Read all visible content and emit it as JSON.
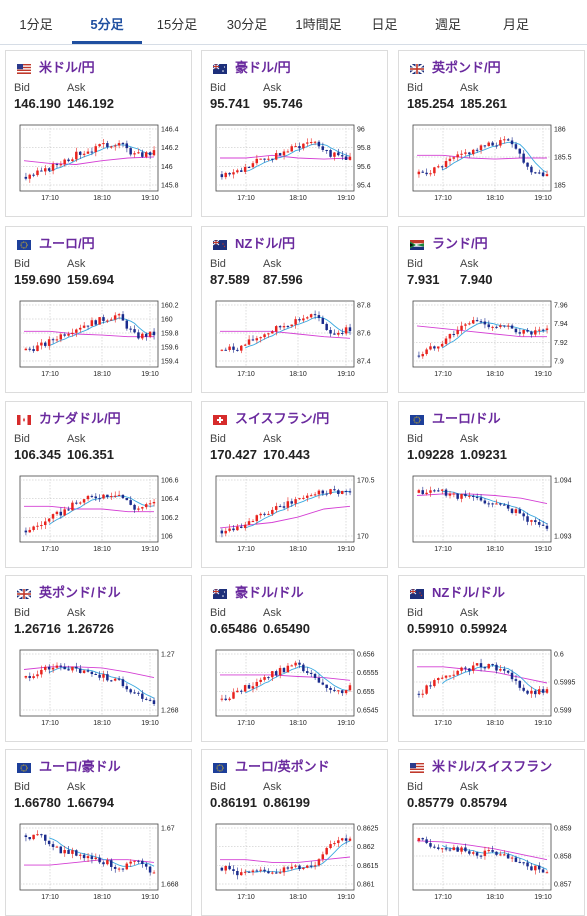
{
  "tabs": [
    {
      "label": "1分足",
      "active": false
    },
    {
      "label": "5分足",
      "active": true
    },
    {
      "label": "15分足",
      "active": false
    },
    {
      "label": "30分足",
      "active": false
    },
    {
      "label": "1時間足",
      "active": false
    },
    {
      "label": "日足",
      "active": false
    },
    {
      "label": "週足",
      "active": false
    },
    {
      "label": "月足",
      "active": false
    }
  ],
  "bid_label": "Bid",
  "ask_label": "Ask",
  "colors": {
    "accent": "#1f4fa0",
    "pair_text": "#6a2a9e",
    "up": "#e8231e",
    "down": "#1a2b8c",
    "ma_long": "#d43fd4",
    "ma_short": "#3aa9e0"
  },
  "cards": [
    {
      "pair": "米ドル/円",
      "flag": "us",
      "bid": "146.190",
      "ask": "146.192",
      "chart": {
        "x_ticks": [
          "17:10",
          "18:10",
          "19:10"
        ],
        "y_ticks": [
          "146.4",
          "146.2",
          "146",
          "145.8"
        ]
      }
    },
    {
      "pair": "豪ドル/円",
      "flag": "au",
      "bid": "95.741",
      "ask": "95.746",
      "chart": {
        "x_ticks": [
          "17:10",
          "18:10",
          "19:10"
        ],
        "y_ticks": [
          "96",
          "95.8",
          "95.6",
          "95.4"
        ]
      }
    },
    {
      "pair": "英ポンド/円",
      "flag": "uk",
      "bid": "185.254",
      "ask": "185.261",
      "chart": {
        "x_ticks": [
          "17:10",
          "18:10",
          "19:10"
        ],
        "y_ticks": [
          "186",
          "185.5",
          "185"
        ]
      }
    },
    {
      "pair": "ユーロ/円",
      "flag": "eu",
      "bid": "159.690",
      "ask": "159.694",
      "chart": {
        "x_ticks": [
          "17:10",
          "18:10",
          "19:10"
        ],
        "y_ticks": [
          "160.2",
          "160",
          "159.8",
          "159.6",
          "159.4"
        ]
      }
    },
    {
      "pair": "NZドル/円",
      "flag": "nz",
      "bid": "87.589",
      "ask": "87.596",
      "chart": {
        "x_ticks": [
          "17:10",
          "18:10",
          "19:10"
        ],
        "y_ticks": [
          "87.8",
          "87.6",
          "87.4"
        ]
      }
    },
    {
      "pair": "ランド/円",
      "flag": "za",
      "bid": "7.931",
      "ask": "7.940",
      "chart": {
        "x_ticks": [
          "17:10",
          "18:10",
          "19:10"
        ],
        "y_ticks": [
          "7.96",
          "7.94",
          "7.92",
          "7.9"
        ]
      }
    },
    {
      "pair": "カナダドル/円",
      "flag": "ca",
      "bid": "106.345",
      "ask": "106.351",
      "chart": {
        "x_ticks": [
          "17:10",
          "18:10",
          "19:10"
        ],
        "y_ticks": [
          "106.6",
          "106.4",
          "106.2",
          "106"
        ]
      }
    },
    {
      "pair": "スイスフラン/円",
      "flag": "ch",
      "bid": "170.427",
      "ask": "170.443",
      "chart": {
        "x_ticks": [
          "17:10",
          "18:10",
          "19:10"
        ],
        "y_ticks": [
          "170.5",
          "170"
        ]
      }
    },
    {
      "pair": "ユーロ/ドル",
      "flag": "eu",
      "bid": "1.09228",
      "ask": "1.09231",
      "chart": {
        "x_ticks": [
          "17:10",
          "18:10",
          "19:10"
        ],
        "y_ticks": [
          "1.094",
          "1.093"
        ]
      }
    },
    {
      "pair": "英ポンド/ドル",
      "flag": "uk",
      "bid": "1.26716",
      "ask": "1.26726",
      "chart": {
        "x_ticks": [
          "17:10",
          "18:10",
          "19:10"
        ],
        "y_ticks": [
          "1.27",
          "1.268"
        ]
      }
    },
    {
      "pair": "豪ドル/ドル",
      "flag": "au",
      "bid": "0.65486",
      "ask": "0.65490",
      "chart": {
        "x_ticks": [
          "17:10",
          "18:10",
          "19:10"
        ],
        "y_ticks": [
          "0.656",
          "0.6555",
          "0.655",
          "0.6545"
        ]
      }
    },
    {
      "pair": "NZドル/ドル",
      "flag": "nz",
      "bid": "0.59910",
      "ask": "0.59924",
      "chart": {
        "x_ticks": [
          "17:10",
          "18:10",
          "19:10"
        ],
        "y_ticks": [
          "0.6",
          "0.5995",
          "0.599"
        ]
      }
    },
    {
      "pair": "ユーロ/豪ドル",
      "flag": "eu",
      "bid": "1.66780",
      "ask": "1.66794",
      "chart": {
        "x_ticks": [
          "17:10",
          "18:10",
          "19:10"
        ],
        "y_ticks": [
          "1.67",
          "1.668"
        ]
      }
    },
    {
      "pair": "ユーロ/英ポンド",
      "flag": "eu",
      "bid": "0.86191",
      "ask": "0.86199",
      "chart": {
        "x_ticks": [
          "17:10",
          "18:10",
          "19:10"
        ],
        "y_ticks": [
          "0.8625",
          "0.862",
          "0.8615",
          "0.861"
        ]
      }
    },
    {
      "pair": "米ドル/スイスフラン",
      "flag": "us",
      "bid": "0.85779",
      "ask": "0.85794",
      "chart": {
        "x_ticks": [
          "17:10",
          "18:10",
          "19:10"
        ],
        "y_ticks": [
          "0.859",
          "0.858",
          "0.857"
        ]
      }
    }
  ]
}
